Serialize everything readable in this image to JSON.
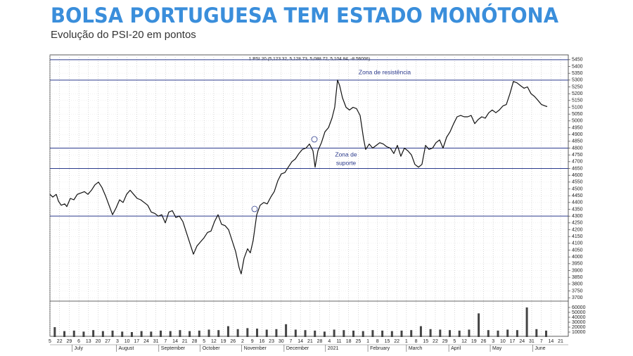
{
  "chart_data": {
    "type": "line",
    "title": "BOLSA PORTUGUESA TEM ESTADO MONÓTONA",
    "subtitle": "Evolução do PSI-20 em pontos",
    "header_text": "1 PSI 20 (5,123.32, 5,128.73, 5,088.72, 5,104.84, -8.56006)",
    "annotations": [
      "Zona de resistência",
      "Zona de",
      "suporte"
    ],
    "reference_lines": [
      5450,
      5300,
      4800,
      4650,
      4300
    ],
    "reference_color": "#2b3a8c",
    "grid": true,
    "ylim": [
      3675,
      5475
    ],
    "yticks": [
      3700,
      3750,
      3800,
      3850,
      3900,
      3950,
      4000,
      4050,
      4100,
      4150,
      4200,
      4250,
      4300,
      4350,
      4400,
      4450,
      4500,
      4550,
      4600,
      4650,
      4700,
      4750,
      4800,
      4850,
      4900,
      4950,
      5000,
      5050,
      5100,
      5150,
      5200,
      5250,
      5300,
      5350,
      5400,
      5450
    ],
    "y2lim": [
      0,
      65000
    ],
    "y2ticks": [
      10000,
      20000,
      30000,
      40000,
      50000,
      60000
    ],
    "xlim": [
      0,
      53.8
    ],
    "xticks": [
      {
        "value": 0,
        "label": "5"
      },
      {
        "value": 1,
        "label": "22"
      },
      {
        "value": 2,
        "label": "29"
      },
      {
        "value": 3,
        "label": "6"
      },
      {
        "value": 4,
        "label": "13"
      },
      {
        "value": 5,
        "label": "20"
      },
      {
        "value": 6,
        "label": "27"
      },
      {
        "value": 7,
        "label": "3"
      },
      {
        "value": 8,
        "label": "10"
      },
      {
        "value": 9,
        "label": "17"
      },
      {
        "value": 10,
        "label": "24"
      },
      {
        "value": 11,
        "label": "31"
      },
      {
        "value": 12,
        "label": "7"
      },
      {
        "value": 13,
        "label": "14"
      },
      {
        "value": 14,
        "label": "21"
      },
      {
        "value": 15,
        "label": "28"
      },
      {
        "value": 16,
        "label": "5"
      },
      {
        "value": 17,
        "label": "12"
      },
      {
        "value": 18,
        "label": "19"
      },
      {
        "value": 19,
        "label": "26"
      },
      {
        "value": 20,
        "label": "2"
      },
      {
        "value": 21,
        "label": "9"
      },
      {
        "value": 22,
        "label": "16"
      },
      {
        "value": 23,
        "label": "23"
      },
      {
        "value": 24,
        "label": "30"
      },
      {
        "value": 25,
        "label": "7"
      },
      {
        "value": 26,
        "label": "14"
      },
      {
        "value": 27,
        "label": "21"
      },
      {
        "value": 28,
        "label": "28"
      },
      {
        "value": 29,
        "label": "4"
      },
      {
        "value": 30,
        "label": "11"
      },
      {
        "value": 31,
        "label": "18"
      },
      {
        "value": 32,
        "label": "25"
      },
      {
        "value": 33,
        "label": "1"
      },
      {
        "value": 34,
        "label": "8"
      },
      {
        "value": 35,
        "label": "15"
      },
      {
        "value": 36,
        "label": "22"
      },
      {
        "value": 37,
        "label": "1"
      },
      {
        "value": 38,
        "label": "8"
      },
      {
        "value": 39,
        "label": "15"
      },
      {
        "value": 40,
        "label": "22"
      },
      {
        "value": 41,
        "label": "29"
      },
      {
        "value": 42,
        "label": "5"
      },
      {
        "value": 43,
        "label": "12"
      },
      {
        "value": 44,
        "label": "19"
      },
      {
        "value": 45,
        "label": "26"
      },
      {
        "value": 46,
        "label": "3"
      },
      {
        "value": 47,
        "label": "10"
      },
      {
        "value": 48,
        "label": "17"
      },
      {
        "value": 49,
        "label": "24"
      },
      {
        "value": 50,
        "label": "31"
      },
      {
        "value": 51,
        "label": "7"
      },
      {
        "value": 52,
        "label": "14"
      },
      {
        "value": 53,
        "label": "21"
      }
    ],
    "month_labels": [
      {
        "value": 2.3,
        "label": "July"
      },
      {
        "value": 6.9,
        "label": "August"
      },
      {
        "value": 11.3,
        "label": "September"
      },
      {
        "value": 15.6,
        "label": "October"
      },
      {
        "value": 19.9,
        "label": "November"
      },
      {
        "value": 24.3,
        "label": "December"
      },
      {
        "value": 28.6,
        "label": "2021"
      },
      {
        "value": 33,
        "label": "February"
      },
      {
        "value": 37,
        "label": "March"
      },
      {
        "value": 41.4,
        "label": "April"
      },
      {
        "value": 45.7,
        "label": "May"
      },
      {
        "value": 50.1,
        "label": "June"
      }
    ],
    "series": [
      {
        "color": "#111111",
        "x": [
          0,
          0.29,
          0.66,
          0.88,
          1.17,
          1.53,
          1.75,
          2.12,
          2.48,
          2.85,
          3.21,
          3.58,
          3.94,
          4.31,
          4.67,
          5.04,
          5.4,
          5.77,
          6.13,
          6.5,
          6.86,
          7.23,
          7.59,
          7.96,
          8.32,
          8.69,
          9.05,
          9.42,
          9.78,
          10.15,
          10.51,
          10.88,
          11.24,
          11.61,
          11.97,
          12.34,
          12.7,
          13.07,
          13.43,
          13.8,
          14.16,
          14.53,
          14.89,
          15.26,
          15.62,
          15.99,
          16.35,
          16.72,
          17.08,
          17.45,
          17.81,
          18.18,
          18.54,
          18.91,
          19.27,
          19.64,
          19.85,
          20.15,
          20.51,
          20.8,
          21.09,
          21.46,
          21.82,
          22.19,
          22.55,
          22.92,
          23.28,
          23.65,
          24.01,
          24.38,
          24.74,
          25.11,
          25.47,
          25.84,
          26.2,
          26.57,
          26.93,
          27.3,
          27.52,
          27.81,
          28.18,
          28.54,
          28.91,
          29.27,
          29.56,
          29.85,
          30.07,
          30.36,
          30.73,
          31.09,
          31.46,
          31.82,
          32.19,
          32.55,
          32.77,
          33.14,
          33.5,
          33.87,
          34.23,
          34.6,
          34.96,
          35.33,
          35.69,
          36.06,
          36.42,
          36.79,
          37.15,
          37.52,
          37.88,
          38.25,
          38.61,
          38.98,
          39.34,
          39.71,
          40.07,
          40.44,
          40.8,
          41.17,
          41.53,
          41.9,
          42.26,
          42.63,
          42.99,
          43.36,
          43.72,
          44.09,
          44.45,
          44.82,
          45.18,
          45.55,
          45.91,
          46.28,
          46.64,
          47.01,
          47.37,
          47.74,
          48.1,
          48.47,
          48.83,
          49.2,
          49.56,
          49.93,
          50.29,
          50.66,
          51.02,
          51.39,
          51.61
        ],
        "values": [
          4460,
          4440,
          4460,
          4410,
          4380,
          4390,
          4370,
          4430,
          4420,
          4460,
          4470,
          4480,
          4460,
          4490,
          4530,
          4550,
          4510,
          4450,
          4380,
          4310,
          4360,
          4420,
          4400,
          4460,
          4490,
          4460,
          4430,
          4420,
          4400,
          4380,
          4330,
          4320,
          4300,
          4310,
          4250,
          4330,
          4340,
          4290,
          4300,
          4260,
          4180,
          4100,
          4020,
          4080,
          4110,
          4140,
          4180,
          4190,
          4260,
          4310,
          4240,
          4230,
          4200,
          4120,
          4040,
          3920,
          3875,
          3990,
          4060,
          4030,
          4120,
          4310,
          4380,
          4400,
          4390,
          4440,
          4480,
          4560,
          4610,
          4620,
          4660,
          4700,
          4720,
          4760,
          4790,
          4800,
          4830,
          4780,
          4660,
          4780,
          4840,
          4920,
          4950,
          5020,
          5100,
          5300,
          5260,
          5170,
          5100,
          5080,
          5100,
          5090,
          5040,
          4870,
          4790,
          4830,
          4800,
          4820,
          4840,
          4830,
          4810,
          4800,
          4760,
          4820,
          4740,
          4800,
          4780,
          4750,
          4680,
          4660,
          4680,
          4820,
          4790,
          4800,
          4840,
          4860,
          4800,
          4880,
          4920,
          4980,
          5030,
          5040,
          5030,
          5030,
          5040,
          4980,
          5010,
          5030,
          5020,
          5060,
          5080,
          5060,
          5080,
          5110,
          5120,
          5200,
          5290,
          5280,
          5260,
          5240,
          5250,
          5200,
          5180,
          5150,
          5120,
          5110,
          5105
        ]
      },
      {
        "type": "bar",
        "axis": "y2",
        "color": "#444444",
        "x": [
          0,
          1,
          2,
          3,
          4,
          5,
          6,
          7,
          8,
          9,
          10,
          11,
          12,
          13,
          14,
          15,
          16,
          17,
          18,
          19,
          20,
          21,
          22,
          23,
          24,
          25,
          26,
          27,
          28,
          29,
          30,
          31,
          32,
          33,
          34,
          35,
          36,
          37,
          38,
          39,
          40,
          41,
          42,
          43,
          44,
          45,
          46,
          47,
          48,
          49,
          50,
          51
        ],
        "values": [
          20000,
          12000,
          13000,
          11000,
          14000,
          12000,
          13000,
          11000,
          10000,
          12000,
          11000,
          13000,
          12000,
          14000,
          12000,
          13000,
          15000,
          14000,
          22000,
          16000,
          18000,
          17000,
          15000,
          16000,
          26000,
          15000,
          14000,
          13000,
          11000,
          15000,
          14000,
          13000,
          12000,
          14000,
          13000,
          12000,
          13000,
          14000,
          22000,
          16000,
          15000,
          14000,
          13000,
          15000,
          48000,
          14000,
          13000,
          15000,
          14000,
          60000,
          16000,
          13000
        ]
      }
    ]
  }
}
